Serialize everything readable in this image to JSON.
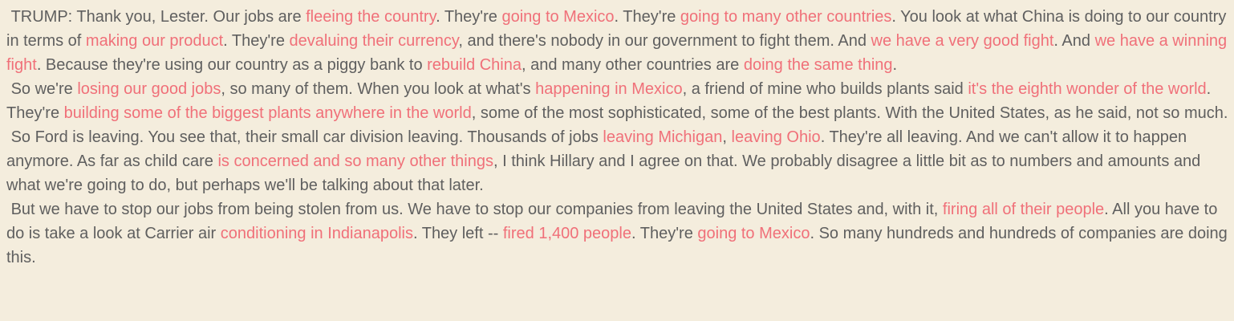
{
  "theme": {
    "background": "#f4eddd",
    "text_color": "#5f5f5f",
    "highlight_color": "#f07079"
  },
  "paragraphs": [
    {
      "segments": [
        {
          "t": " TRUMP: Thank you, Lester. Our jobs are ",
          "h": false
        },
        {
          "t": "fleeing the country",
          "h": true
        },
        {
          "t": ". They're ",
          "h": false
        },
        {
          "t": "going to Mexico",
          "h": true
        },
        {
          "t": ". They're ",
          "h": false
        },
        {
          "t": "going to many other countries",
          "h": true
        },
        {
          "t": ". You look at what China is doing to our country in terms of ",
          "h": false
        },
        {
          "t": "making our product",
          "h": true
        },
        {
          "t": ". They're ",
          "h": false
        },
        {
          "t": "devaluing their currency",
          "h": true
        },
        {
          "t": ", and there's nobody in our government to fight them. And ",
          "h": false
        },
        {
          "t": "we have a very good fight",
          "h": true
        },
        {
          "t": ". And ",
          "h": false
        },
        {
          "t": "we have a winning fight",
          "h": true
        },
        {
          "t": ". Because they're using our country as a piggy bank to ",
          "h": false
        },
        {
          "t": "rebuild China",
          "h": true
        },
        {
          "t": ", and many other countries are ",
          "h": false
        },
        {
          "t": "doing the same thing",
          "h": true
        },
        {
          "t": ".",
          "h": false
        }
      ]
    },
    {
      "segments": [
        {
          "t": " So we're ",
          "h": false
        },
        {
          "t": "losing our good jobs",
          "h": true
        },
        {
          "t": ", so many of them. When you look at what's ",
          "h": false
        },
        {
          "t": "happening in Mexico",
          "h": true
        },
        {
          "t": ", a friend of mine who builds plants said ",
          "h": false
        },
        {
          "t": "it's the eighth wonder of the world",
          "h": true
        },
        {
          "t": ". They're ",
          "h": false
        },
        {
          "t": "building some of the biggest plants anywhere in the world",
          "h": true
        },
        {
          "t": ", some of the most sophisticated, some of the best plants. With the United States, as he said, not so much.",
          "h": false
        }
      ]
    },
    {
      "segments": [
        {
          "t": " So Ford is leaving. You see that, their small car division leaving. Thousands of jobs ",
          "h": false
        },
        {
          "t": "leaving Michigan",
          "h": true
        },
        {
          "t": ", ",
          "h": false
        },
        {
          "t": "leaving Ohio",
          "h": true
        },
        {
          "t": ". They're all leaving. And we can't allow it to happen anymore. As far as child care ",
          "h": false
        },
        {
          "t": "is concerned and so many other things",
          "h": true
        },
        {
          "t": ", I think Hillary and I agree on that. We probably disagree a little bit as to numbers and amounts and what we're going to do, but perhaps we'll be talking about that later.",
          "h": false
        }
      ]
    },
    {
      "segments": [
        {
          "t": " But we have to stop our jobs from being stolen from us. We have to stop our companies from leaving the United States and, with it, ",
          "h": false
        },
        {
          "t": "firing all of their people",
          "h": true
        },
        {
          "t": ". All you have to do is take a look at Carrier air ",
          "h": false
        },
        {
          "t": "conditioning in Indianapolis",
          "h": true
        },
        {
          "t": ". They left -- ",
          "h": false
        },
        {
          "t": "fired 1,400 people",
          "h": true
        },
        {
          "t": ". They're ",
          "h": false
        },
        {
          "t": "going to Mexico",
          "h": true
        },
        {
          "t": ". So many hundreds and hundreds of companies are doing this.",
          "h": false
        }
      ]
    }
  ]
}
